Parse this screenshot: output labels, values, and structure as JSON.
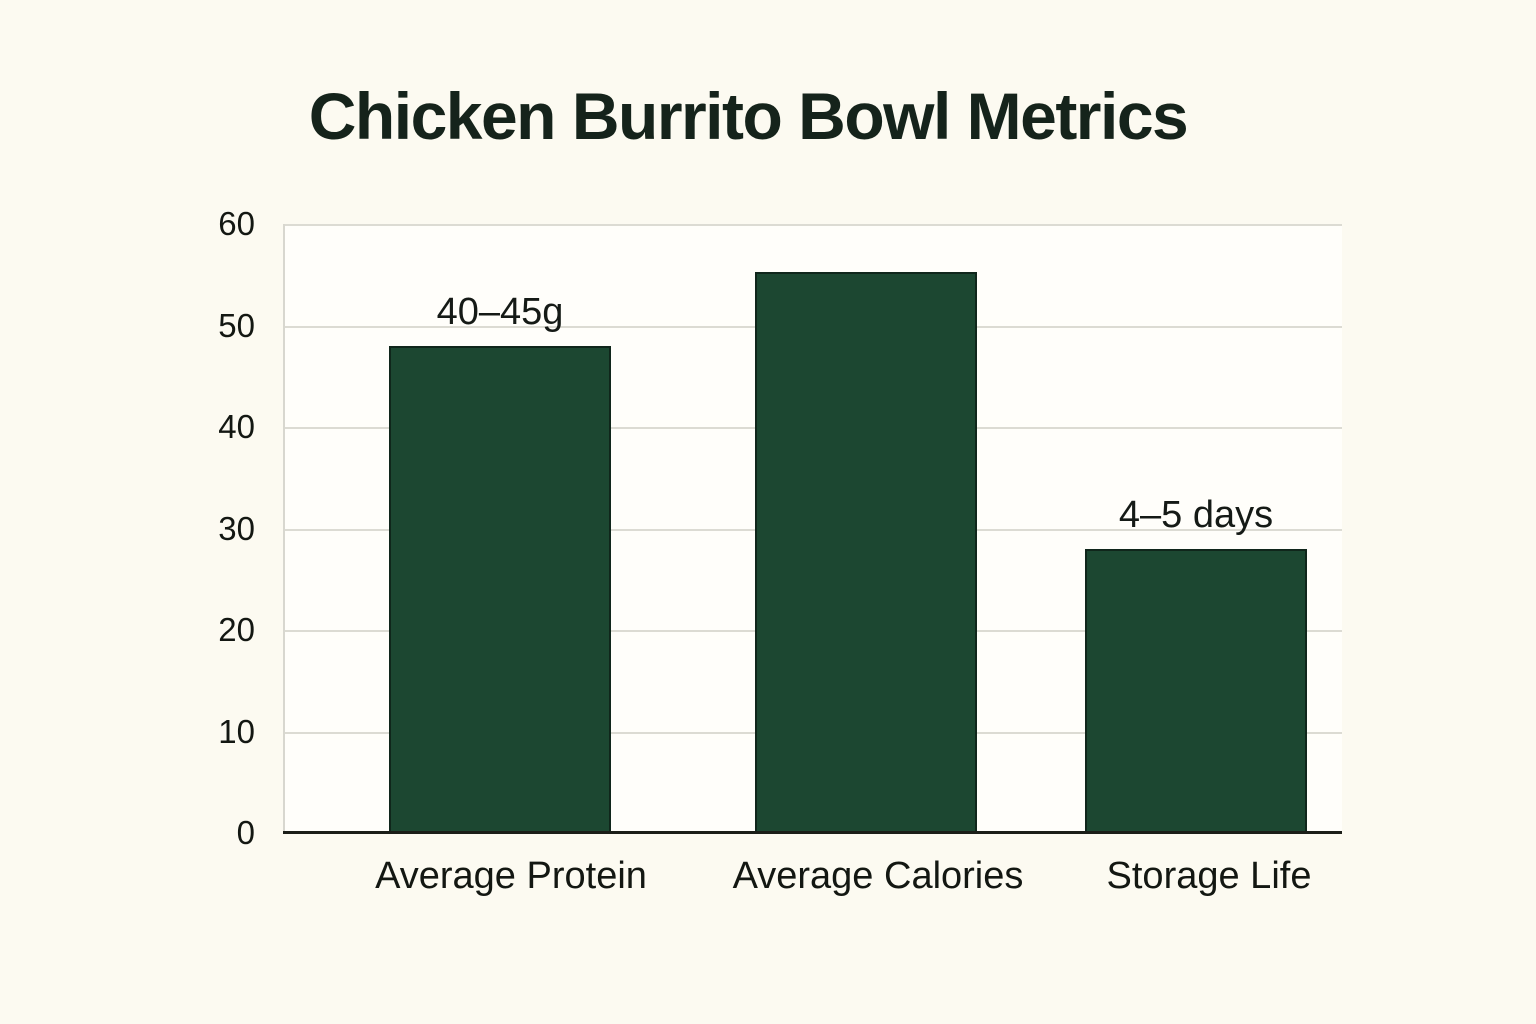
{
  "page": {
    "background_color": "#fcfaf1",
    "plot_background_color": "#fffefa",
    "accent_color": "#1c4731"
  },
  "chart_data": {
    "type": "bar",
    "title": "Chicken Burrito Bowl Metrics",
    "categories": [
      "Average Protein",
      "Average Calories",
      "Storage Life"
    ],
    "values": [
      48,
      55.3,
      28
    ],
    "bar_labels": [
      "40–45g",
      "",
      "4–5 days"
    ],
    "xlabel": "",
    "ylabel": "",
    "ylim": [
      0,
      60
    ],
    "yticks": [
      0,
      10,
      20,
      30,
      40,
      50,
      60
    ],
    "grid": "horizontal",
    "legend": "none",
    "bar_color": "#1c4731",
    "bar_edge_color": "#10261b",
    "annotations": [
      {
        "category": "Average Protein",
        "text": "40–45g"
      },
      {
        "category": "Storage Life",
        "text": "4–5 days"
      }
    ]
  }
}
